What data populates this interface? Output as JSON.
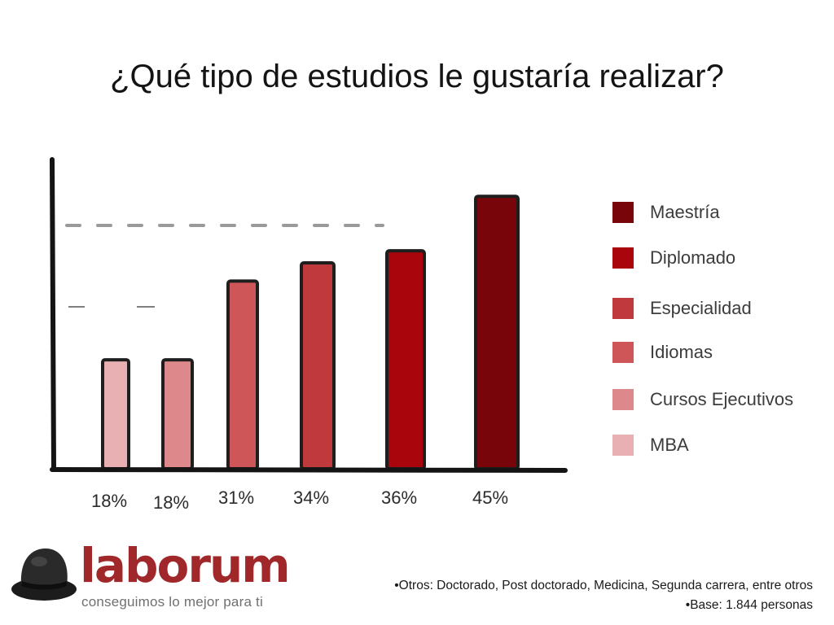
{
  "title": "¿Qué tipo de estudios le gustaría realizar?",
  "chart_data": {
    "type": "bar",
    "categories": [
      "MBA",
      "Cursos Ejecutivos",
      "Idiomas",
      "Especialidad",
      "Diplomado",
      "Maestría"
    ],
    "values": [
      18,
      18,
      31,
      34,
      36,
      45
    ],
    "data_labels": [
      "18%",
      "18%",
      "31%",
      "34%",
      "36%",
      "45%"
    ],
    "colors": [
      "#e8b0b2",
      "#dd888b",
      "#cf5658",
      "#c0393c",
      "#a8050d",
      "#780509"
    ],
    "ylim": [
      0,
      50
    ],
    "legend": {
      "placement": "right",
      "items": [
        {
          "label": "Maestría",
          "color": "#780509"
        },
        {
          "label": "Diplomado",
          "color": "#a8050d"
        },
        {
          "label": "Especialidad",
          "color": "#c0393c"
        },
        {
          "label": "Idiomas",
          "color": "#cf5658"
        },
        {
          "label": "Cursos Ejecutivos",
          "color": "#dd888b"
        },
        {
          "label": "MBA",
          "color": "#e8b0b2"
        }
      ]
    }
  },
  "logo": {
    "wordmark": "laborum",
    "tagline": "conseguimos lo mejor para ti",
    "icon": "bowler-hat-icon",
    "brand_color": "#a1282a"
  },
  "notes": [
    "•Otros: Doctorado, Post doctorado, Medicina, Segunda carrera, entre otros",
    "•Base: 1.844 personas"
  ]
}
